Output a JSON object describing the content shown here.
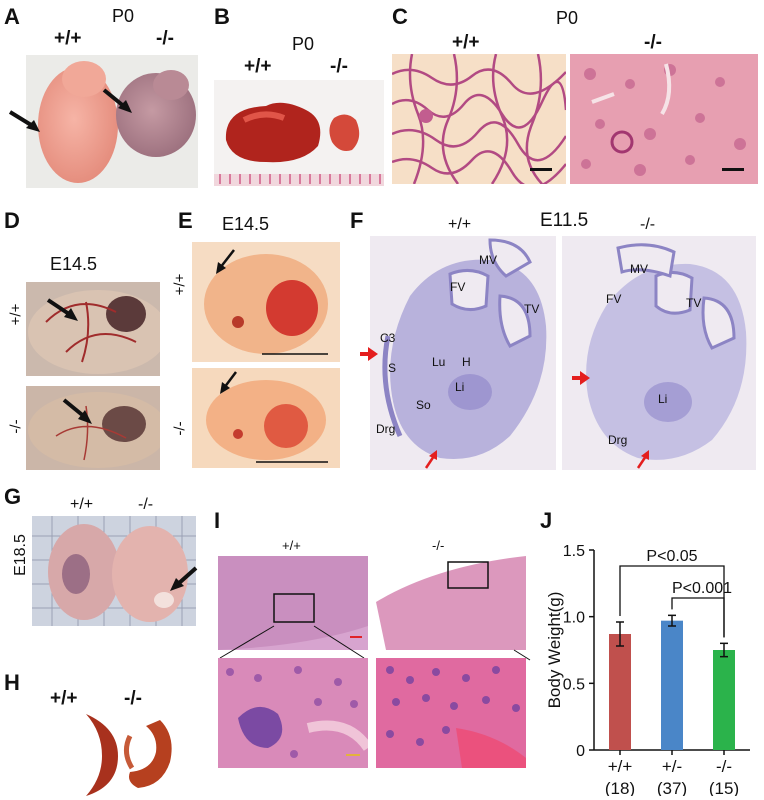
{
  "panels": {
    "A": {
      "letter": "A",
      "stage": "P0",
      "wt": "+/+",
      "ko": "-/-"
    },
    "B": {
      "letter": "B",
      "stage": "P0",
      "wt": "+/+",
      "ko": "-/-"
    },
    "C": {
      "letter": "C",
      "stage": "P0",
      "wt": "+/+",
      "ko": "-/-"
    },
    "D": {
      "letter": "D",
      "stage": "E14.5",
      "wt": "+/+",
      "ko": "-/-"
    },
    "E": {
      "letter": "E",
      "stage": "E14.5",
      "wt": "+/+",
      "ko": "-/-"
    },
    "F": {
      "letter": "F",
      "stage": "E11.5",
      "wt": "+/+",
      "ko": "-/-",
      "wt_labels": {
        "mv": "MV",
        "fv": "FV",
        "tv": "TV",
        "c3": "C3",
        "s": "S",
        "lu": "Lu",
        "h": "H",
        "li": "Li",
        "so": "So",
        "drg": "Drg"
      },
      "ko_labels": {
        "mv": "MV",
        "fv": "FV",
        "tv": "TV",
        "li": "Li",
        "drg": "Drg"
      }
    },
    "G": {
      "letter": "G",
      "stage": "E18.5",
      "wt": "+/+",
      "ko": "-/-"
    },
    "H": {
      "letter": "H",
      "wt": "+/+",
      "ko": "-/-"
    },
    "I": {
      "letter": "I",
      "wt": "+/+",
      "ko": "-/-"
    },
    "J": {
      "letter": "J"
    }
  },
  "chart_data": {
    "type": "bar",
    "categories": [
      "+/+",
      "+/-",
      "-/-"
    ],
    "category_counts": [
      "(18)",
      "(37)",
      "(15)"
    ],
    "values": [
      0.87,
      0.97,
      0.75
    ],
    "errors": [
      0.09,
      0.04,
      0.05
    ],
    "colors": [
      "#c0504d",
      "#4a86c8",
      "#2bb34b"
    ],
    "ylabel": "Body Weight(g)",
    "ylim": [
      0,
      1.5
    ],
    "yticks": [
      "0",
      "0.5",
      "1.0",
      "1.5"
    ],
    "annotations": [
      {
        "text": "P<0.05",
        "from": "+/+",
        "to": "-/-"
      },
      {
        "text": "P<0.001",
        "from": "+/-",
        "to": "-/-"
      }
    ]
  }
}
